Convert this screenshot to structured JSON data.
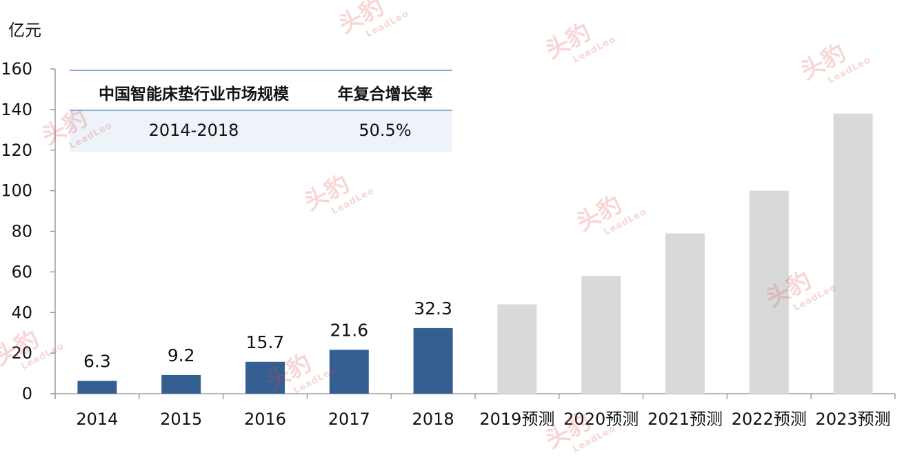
{
  "chart_data": {
    "type": "bar",
    "unit_label": "亿元",
    "categories": [
      "2014",
      "2015",
      "2016",
      "2017",
      "2018",
      "2019预测",
      "2020预测",
      "2021预测",
      "2022预测",
      "2023预测"
    ],
    "series": [
      {
        "values": [
          6.3,
          9.2,
          15.7,
          21.6,
          32.3,
          44.0,
          58.0,
          79.0,
          100.0,
          138.0
        ],
        "data_labels": [
          "6.3",
          "9.2",
          "15.7",
          "21.6",
          "32.3",
          null,
          null,
          null,
          null,
          null
        ],
        "forecast": [
          false,
          false,
          false,
          false,
          false,
          true,
          true,
          true,
          true,
          true
        ]
      }
    ],
    "colors": {
      "actual": "#355f91",
      "forecast": "#d9d9d9"
    },
    "ylim": [
      0,
      160
    ],
    "yticks": [
      0,
      20,
      40,
      60,
      80,
      100,
      120,
      140,
      160
    ],
    "grid": false,
    "legend": "none"
  },
  "info_table": {
    "header": {
      "col1": "中国智能床垫行业市场规模",
      "col2": "年复合增长率"
    },
    "row": {
      "col1": "2014-2018",
      "col2": "50.5%"
    },
    "border_color": "#8eaadb",
    "row_background": "#eef3f9"
  },
  "watermark": {
    "brand": "头豹",
    "brand_en": "LeadLeo",
    "color": "#e14646"
  }
}
